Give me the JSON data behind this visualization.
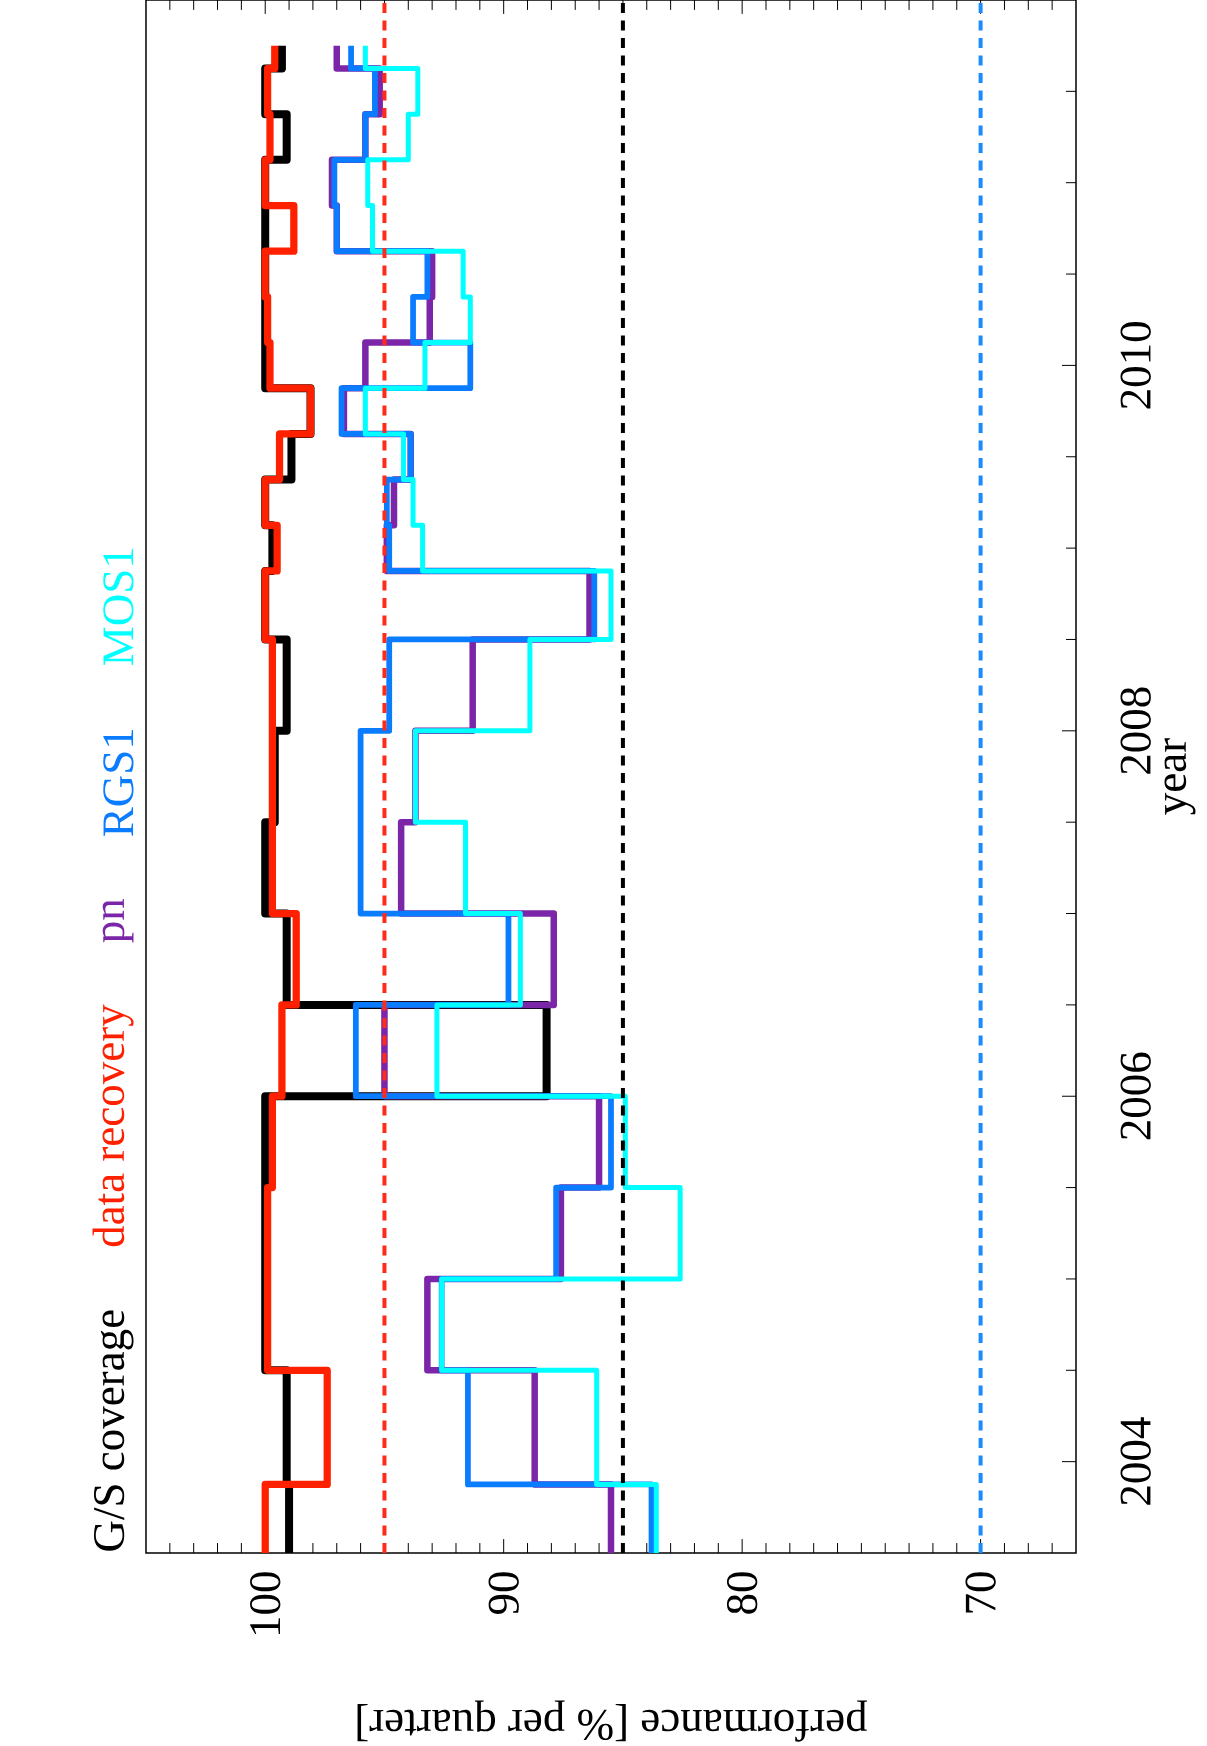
{
  "chart_data": {
    "type": "step",
    "orientation": "horizontal",
    "xlabel": "performance [% per quarter]",
    "ylabel": "year",
    "x": [
      2003.5,
      2003.875,
      2004.5,
      2005.0,
      2005.5,
      2006.0,
      2006.5,
      2007.0,
      2007.5,
      2008.0,
      2008.5,
      2008.875,
      2009.125,
      2009.375,
      2009.625,
      2009.875,
      2010.125,
      2010.375,
      2010.625,
      2010.875,
      2011.125,
      2011.375,
      2011.625,
      2011.75
    ],
    "series": [
      {
        "name": "G/S coverage",
        "color": "#000000",
        "values": [
          99.0,
          99.1,
          100.0,
          100.0,
          100.0,
          88.2,
          99.1,
          100.0,
          99.6,
          99.1,
          100.0,
          99.7,
          100.0,
          98.9,
          98.1,
          100.0,
          100.0,
          100.0,
          100.0,
          100.0,
          99.1,
          100.0,
          99.3,
          99.3
        ]
      },
      {
        "name": "data recovery",
        "color": "#ff2000",
        "values": [
          100.0,
          97.4,
          99.9,
          99.9,
          99.7,
          99.3,
          98.7,
          99.7,
          99.7,
          99.7,
          100.0,
          99.5,
          100.0,
          99.4,
          98.1,
          99.8,
          99.9,
          100.0,
          98.8,
          100.0,
          99.8,
          99.9,
          99.6,
          99.6
        ]
      },
      {
        "name": "pn",
        "color": "#7b26a8",
        "values": [
          85.5,
          88.7,
          93.2,
          87.6,
          86.0,
          95.0,
          87.9,
          94.3,
          93.7,
          91.3,
          86.4,
          94.9,
          94.6,
          93.9,
          96.7,
          95.8,
          93.1,
          93.0,
          97.0,
          97.2,
          95.8,
          95.2,
          97.0,
          97.0
        ]
      },
      {
        "name": "RGS1",
        "color": "#0a7cff",
        "values": [
          83.8,
          91.5,
          92.6,
          87.8,
          85.5,
          96.2,
          89.8,
          96.0,
          96.0,
          94.8,
          86.2,
          94.8,
          94.9,
          93.9,
          96.8,
          91.4,
          93.8,
          93.2,
          97.0,
          97.1,
          95.8,
          95.4,
          96.4,
          96.4
        ]
      },
      {
        "name": "MOS1",
        "color": "#00ffff",
        "values": [
          83.6,
          86.1,
          92.6,
          82.6,
          84.9,
          92.8,
          89.3,
          91.6,
          93.7,
          88.9,
          85.5,
          93.4,
          93.8,
          94.2,
          95.8,
          93.3,
          91.4,
          91.7,
          95.5,
          95.7,
          94.0,
          93.6,
          95.8,
          95.8
        ]
      }
    ],
    "xlim": [
      105,
      66
    ],
    "xticks": [
      {
        "value": 104,
        "label": null
      },
      {
        "value": 103,
        "label": null
      },
      {
        "value": 102,
        "label": null
      },
      {
        "value": 101,
        "label": null
      },
      100,
      {
        "value": 99,
        "label": null
      },
      {
        "value": 98,
        "label": null
      },
      {
        "value": 97,
        "label": null
      },
      {
        "value": 96,
        "label": null
      },
      {
        "value": 95,
        "label": null
      },
      {
        "value": 94,
        "label": null
      },
      {
        "value": 93,
        "label": null
      },
      {
        "value": 92,
        "label": null
      },
      {
        "value": 91,
        "label": null
      },
      90,
      {
        "value": 89,
        "label": null
      },
      {
        "value": 88,
        "label": null
      },
      {
        "value": 87,
        "label": null
      },
      {
        "value": 86,
        "label": null
      },
      {
        "value": 85,
        "label": null
      },
      {
        "value": 84,
        "label": null
      },
      {
        "value": 83,
        "label": null
      },
      {
        "value": 82,
        "label": null
      },
      {
        "value": 81,
        "label": null
      },
      80,
      {
        "value": 79,
        "label": null
      },
      {
        "value": 78,
        "label": null
      },
      {
        "value": 77,
        "label": null
      },
      {
        "value": 76,
        "label": null
      },
      {
        "value": 75,
        "label": null
      },
      {
        "value": 74,
        "label": null
      },
      {
        "value": 73,
        "label": null
      },
      {
        "value": 72,
        "label": null
      },
      {
        "value": 71,
        "label": null
      },
      70,
      {
        "value": 69,
        "label": null
      },
      {
        "value": 68,
        "label": null
      },
      {
        "value": 67,
        "label": null
      }
    ],
    "ylim": [
      2003.5,
      2012
    ],
    "yticks": [
      2004,
      {
        "value": 2004.5,
        "label": null
      },
      {
        "value": 2005,
        "label": null
      },
      {
        "value": 2005.5,
        "label": null
      },
      2006,
      {
        "value": 2006.5,
        "label": null
      },
      {
        "value": 2007,
        "label": null
      },
      {
        "value": 2007.5,
        "label": null
      },
      2008,
      {
        "value": 2008.5,
        "label": null
      },
      {
        "value": 2009,
        "label": null
      },
      {
        "value": 2009.5,
        "label": null
      },
      2010,
      {
        "value": 2010.5,
        "label": null
      },
      {
        "value": 2011,
        "label": null
      },
      {
        "value": 2011.5,
        "label": null
      }
    ],
    "ref_lines": [
      {
        "axis": "x",
        "value": 95,
        "color": "#ff2a1a",
        "line_style": "dashed"
      },
      {
        "axis": "x",
        "value": 85,
        "color": "#000000",
        "line_style": "dashed"
      },
      {
        "axis": "x",
        "value": 70,
        "color": "#1a8cff",
        "line_style": "dashed"
      }
    ],
    "legend": "left",
    "grid": false,
    "marker": "none"
  }
}
